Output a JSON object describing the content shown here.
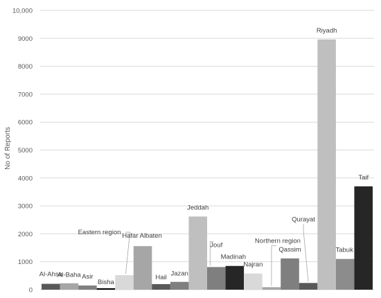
{
  "chart_data": {
    "type": "bar",
    "title": "",
    "xlabel": "",
    "ylabel": "No of Reports",
    "ylim": [
      0,
      10000
    ],
    "yticks": [
      0,
      1000,
      2000,
      3000,
      4000,
      5000,
      6000,
      7000,
      8000,
      9000,
      10000
    ],
    "ytick_labels": [
      "0",
      "1000",
      "2000",
      "3000",
      "4000",
      "5000",
      "6000",
      "7000",
      "8000",
      "9000",
      "10,000"
    ],
    "grid": true,
    "legend": "none",
    "categories": [
      "Al-Ahsa",
      "Al-Baha",
      "Asir",
      "Bisha",
      "Eastern region",
      "Hafar Albaten",
      "Hail",
      "Jazan",
      "Jeddah",
      "Jouf",
      "Madinah",
      "Najran",
      "Northern region",
      "Qassim",
      "Qurayat",
      "Riyadh",
      "Tabuk",
      "Taif"
    ],
    "values": [
      210,
      230,
      150,
      50,
      520,
      1560,
      200,
      280,
      2620,
      810,
      850,
      580,
      90,
      1120,
      240,
      8960,
      1100,
      3700
    ],
    "colors": [
      "#595959",
      "#a6a6a6",
      "#7f7f7f",
      "#000000",
      "#d9d9d9",
      "#a6a6a6",
      "#595959",
      "#7f7f7f",
      "#bfbfbf",
      "#7f7f7f",
      "#262626",
      "#d9d9d9",
      "#a6a6a6",
      "#7f7f7f",
      "#595959",
      "#bfbfbf",
      "#8c8c8c",
      "#262626"
    ]
  }
}
